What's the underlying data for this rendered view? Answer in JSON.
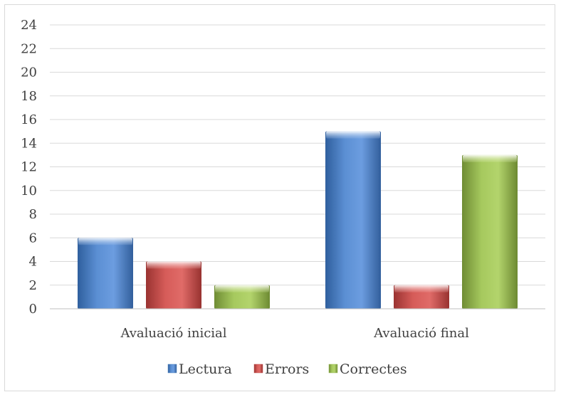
{
  "chart_data": {
    "type": "bar",
    "title": "",
    "xlabel": "",
    "ylabel": "",
    "categories": [
      "Avaluació inicial",
      "Avaluació final"
    ],
    "series": [
      {
        "name": "Lectura",
        "values": [
          6,
          15
        ],
        "color": "#4f81bd"
      },
      {
        "name": "Errors",
        "values": [
          4,
          2
        ],
        "color": "#c0504d"
      },
      {
        "name": "Correctes",
        "values": [
          2,
          13
        ],
        "color": "#9bbb59"
      }
    ],
    "ylim": [
      0,
      24
    ],
    "yticks": [
      0,
      2,
      4,
      6,
      8,
      10,
      12,
      14,
      16,
      18,
      20,
      22,
      24
    ],
    "grid": true,
    "legend_position": "bottom"
  }
}
